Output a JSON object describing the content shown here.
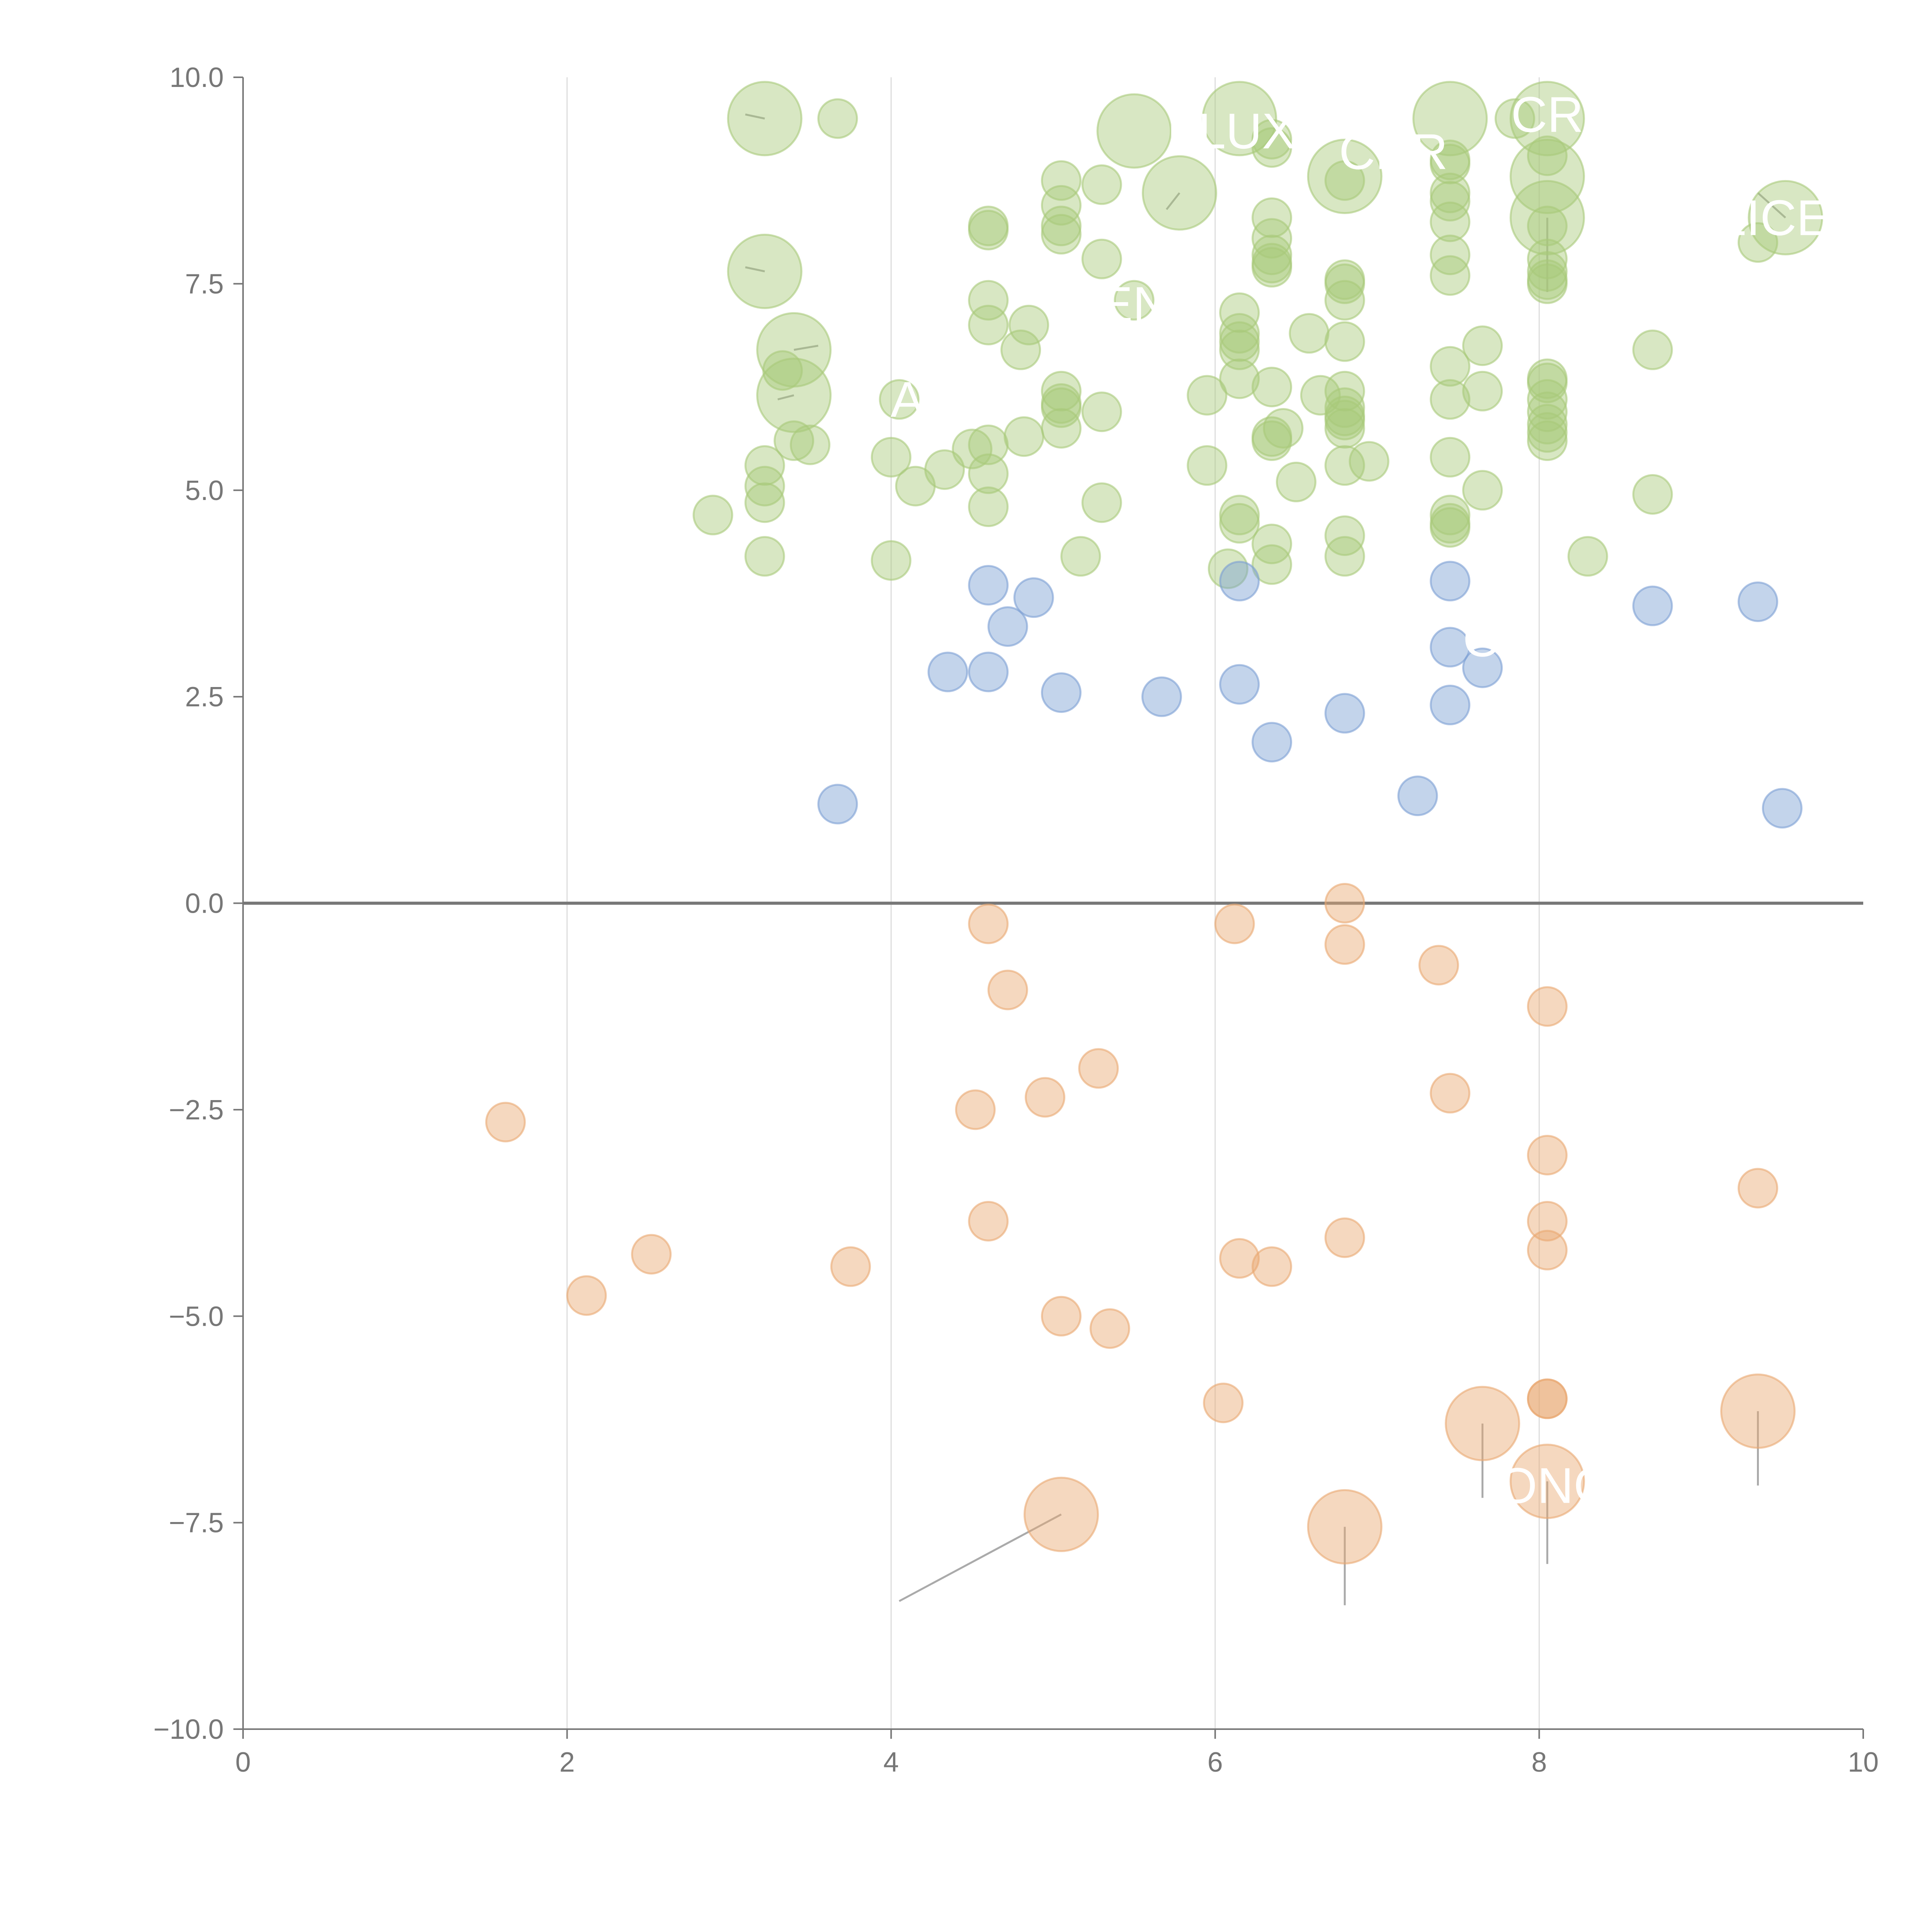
{
  "colors": {
    "positive_high": "#a9c97a",
    "positive_low": "#7b9fd3",
    "negative": "#e9a872",
    "axis": "#777777",
    "grid": "#dddddd",
    "zero_line": "#777777",
    "leader": "#aaaaaa",
    "label": "#ffffff"
  },
  "chart_data": {
    "type": "scatter",
    "subtype": "bubble",
    "title": "",
    "xlabel": "",
    "ylabel": "",
    "xlim": [
      0,
      10
    ],
    "ylim": [
      -10,
      10
    ],
    "x_ticks": [
      0,
      2,
      4,
      6,
      8,
      10
    ],
    "x_tick_labels": [
      "0",
      "2",
      "4",
      "6",
      "8",
      "10"
    ],
    "y_ticks": [
      10,
      7.5,
      5,
      2.5,
      0,
      -2.5,
      -5,
      -7.5,
      -10
    ],
    "y_tick_labels": [
      "10.0",
      "7.5",
      "5.0",
      "2.5",
      "0.0",
      "−2.5",
      "−5.0",
      "−7.5",
      "−10.0"
    ],
    "grid": "vertical at x ticks",
    "legend": "none",
    "labels": [
      {
        "text": "FLUX",
        "x": 6.1,
        "y": 9.35
      },
      {
        "text": "CR",
        "x": 8.05,
        "y": 9.55
      },
      {
        "text": "CHR",
        "x": 7.1,
        "y": 9.1
      },
      {
        "text": "LICE",
        "x": 9.45,
        "y": 8.3
      },
      {
        "text": "EN",
        "x": 5.5,
        "y": 7.25
      },
      {
        "text": "A",
        "x": 4.1,
        "y": 6.1
      },
      {
        "text": "O",
        "x": 7.65,
        "y": 3.2
      },
      {
        "text": "ONG",
        "x": 8.1,
        "y": -7.05
      }
    ],
    "series": [
      {
        "name": "high",
        "color": "#a9c97a",
        "points": [
          [
            3.22,
            9.5,
            2
          ],
          [
            3.67,
            9.5,
            1
          ],
          [
            5.5,
            9.35,
            2
          ],
          [
            6.15,
            9.5,
            2
          ],
          [
            6.35,
            9.15,
            1
          ],
          [
            6.35,
            9.25,
            1
          ],
          [
            7.45,
            9.5,
            2
          ],
          [
            7.85,
            9.5,
            1
          ],
          [
            8.05,
            9.5,
            2
          ],
          [
            7.45,
            9.0,
            1
          ],
          [
            7.45,
            8.95,
            1
          ],
          [
            8.05,
            9.05,
            1
          ],
          [
            5.05,
            8.75,
            1
          ],
          [
            5.3,
            8.7,
            1
          ],
          [
            5.78,
            8.6,
            2
          ],
          [
            6.8,
            8.8,
            2
          ],
          [
            6.8,
            8.75,
            1
          ],
          [
            8.05,
            8.8,
            2
          ],
          [
            7.45,
            8.6,
            1
          ],
          [
            7.45,
            8.5,
            1
          ],
          [
            4.6,
            8.2,
            1
          ],
          [
            4.6,
            8.15,
            1
          ],
          [
            5.05,
            8.45,
            1
          ],
          [
            5.05,
            8.2,
            1
          ],
          [
            5.05,
            8.1,
            1
          ],
          [
            6.35,
            8.3,
            1
          ],
          [
            6.35,
            8.05,
            1
          ],
          [
            7.45,
            8.25,
            1
          ],
          [
            8.05,
            8.3,
            2
          ],
          [
            8.05,
            8.2,
            1
          ],
          [
            9.35,
            8.0,
            1
          ],
          [
            9.52,
            8.3,
            2
          ],
          [
            3.22,
            7.65,
            2
          ],
          [
            5.3,
            7.8,
            1
          ],
          [
            6.35,
            7.85,
            1
          ],
          [
            6.35,
            7.7,
            1
          ],
          [
            6.35,
            7.75,
            1
          ],
          [
            6.8,
            7.55,
            1
          ],
          [
            6.8,
            7.5,
            1
          ],
          [
            7.45,
            7.85,
            1
          ],
          [
            7.45,
            7.6,
            1
          ],
          [
            8.05,
            7.8,
            1
          ],
          [
            8.05,
            7.65,
            1
          ],
          [
            8.05,
            7.55,
            1
          ],
          [
            8.05,
            7.5,
            1
          ],
          [
            4.6,
            7.3,
            1
          ],
          [
            4.6,
            7.0,
            1
          ],
          [
            4.85,
            7.0,
            1
          ],
          [
            5.5,
            7.3,
            1
          ],
          [
            6.15,
            7.15,
            1
          ],
          [
            6.15,
            6.9,
            1
          ],
          [
            6.15,
            6.8,
            1
          ],
          [
            6.15,
            6.7,
            1
          ],
          [
            6.58,
            6.9,
            1
          ],
          [
            6.8,
            7.3,
            1
          ],
          [
            6.8,
            6.8,
            1
          ],
          [
            7.65,
            6.75,
            1
          ],
          [
            8.7,
            6.7,
            1
          ],
          [
            3.4,
            6.7,
            2
          ],
          [
            3.33,
            6.45,
            1
          ],
          [
            4.8,
            6.7,
            1
          ],
          [
            3.4,
            6.15,
            2
          ],
          [
            4.05,
            6.1,
            1
          ],
          [
            5.05,
            6.2,
            1
          ],
          [
            5.05,
            6.05,
            1
          ],
          [
            5.05,
            6.0,
            1
          ],
          [
            5.3,
            5.95,
            1
          ],
          [
            5.95,
            6.15,
            1
          ],
          [
            6.15,
            6.35,
            1
          ],
          [
            6.35,
            6.25,
            1
          ],
          [
            6.65,
            6.15,
            1
          ],
          [
            6.8,
            6.2,
            1
          ],
          [
            6.8,
            6.0,
            1
          ],
          [
            6.8,
            5.9,
            1
          ],
          [
            6.8,
            5.85,
            1
          ],
          [
            7.45,
            6.5,
            1
          ],
          [
            7.45,
            6.1,
            1
          ],
          [
            7.65,
            6.2,
            1
          ],
          [
            8.05,
            6.35,
            1
          ],
          [
            8.05,
            6.3,
            1
          ],
          [
            8.05,
            6.1,
            1
          ],
          [
            8.05,
            5.95,
            1
          ],
          [
            8.05,
            5.8,
            1
          ],
          [
            8.05,
            5.7,
            1
          ],
          [
            8.05,
            5.6,
            1
          ],
          [
            3.4,
            5.6,
            1
          ],
          [
            3.5,
            5.55,
            1
          ],
          [
            3.22,
            5.3,
            1
          ],
          [
            4.6,
            5.55,
            1
          ],
          [
            4.5,
            5.5,
            1
          ],
          [
            4.82,
            5.65,
            1
          ],
          [
            5.05,
            5.75,
            1
          ],
          [
            6.35,
            5.65,
            1
          ],
          [
            6.35,
            5.6,
            1
          ],
          [
            6.42,
            5.75,
            1
          ],
          [
            6.8,
            5.75,
            1
          ],
          [
            6.8,
            5.3,
            1
          ],
          [
            6.95,
            5.35,
            1
          ],
          [
            3.22,
            5.05,
            1
          ],
          [
            3.22,
            4.85,
            1
          ],
          [
            2.9,
            4.7,
            1
          ],
          [
            4.0,
            5.4,
            1
          ],
          [
            4.15,
            5.05,
            1
          ],
          [
            4.33,
            5.25,
            1
          ],
          [
            4.6,
            5.2,
            1
          ],
          [
            4.6,
            4.8,
            1
          ],
          [
            5.3,
            4.85,
            1
          ],
          [
            5.95,
            5.3,
            1
          ],
          [
            6.15,
            4.7,
            1
          ],
          [
            6.15,
            4.6,
            1
          ],
          [
            6.5,
            5.1,
            1
          ],
          [
            7.45,
            5.4,
            1
          ],
          [
            7.45,
            4.7,
            1
          ],
          [
            7.45,
            4.6,
            1
          ],
          [
            7.45,
            4.55,
            1
          ],
          [
            7.65,
            5.0,
            1
          ],
          [
            8.7,
            4.95,
            1
          ],
          [
            3.22,
            4.2,
            1
          ],
          [
            4.0,
            4.15,
            1
          ],
          [
            5.17,
            4.2,
            1
          ],
          [
            6.08,
            4.05,
            1
          ],
          [
            6.35,
            4.35,
            1
          ],
          [
            6.35,
            4.1,
            1
          ],
          [
            6.8,
            4.45,
            1
          ],
          [
            6.8,
            4.2,
            1
          ],
          [
            8.3,
            4.2,
            1
          ]
        ]
      },
      {
        "name": "low",
        "color": "#7b9fd3",
        "points": [
          [
            4.6,
            3.85,
            1
          ],
          [
            4.88,
            3.7,
            1
          ],
          [
            4.72,
            3.35,
            1
          ],
          [
            4.35,
            2.8,
            1
          ],
          [
            4.6,
            2.8,
            1
          ],
          [
            5.05,
            2.55,
            1
          ],
          [
            5.67,
            2.5,
            1
          ],
          [
            6.15,
            3.9,
            1
          ],
          [
            6.15,
            2.65,
            1
          ],
          [
            6.35,
            1.95,
            1
          ],
          [
            6.8,
            2.3,
            1
          ],
          [
            7.45,
            3.9,
            1
          ],
          [
            7.45,
            3.1,
            1
          ],
          [
            7.45,
            2.4,
            1
          ],
          [
            7.65,
            2.85,
            1
          ],
          [
            7.25,
            1.3,
            1
          ],
          [
            8.7,
            3.6,
            1
          ],
          [
            9.35,
            3.65,
            1
          ],
          [
            3.67,
            1.2,
            1
          ],
          [
            9.5,
            1.15,
            1
          ]
        ]
      },
      {
        "name": "negative",
        "color": "#e9a872",
        "points": [
          [
            4.6,
            -0.25,
            1
          ],
          [
            4.72,
            -1.05,
            1
          ],
          [
            6.12,
            -0.25,
            1
          ],
          [
            6.8,
            0.0,
            1
          ],
          [
            6.8,
            -0.5,
            1
          ],
          [
            7.38,
            -0.75,
            1
          ],
          [
            8.05,
            -1.25,
            1
          ],
          [
            5.28,
            -2.0,
            1
          ],
          [
            4.95,
            -2.35,
            1
          ],
          [
            4.52,
            -2.5,
            1
          ],
          [
            1.62,
            -2.65,
            1
          ],
          [
            7.45,
            -2.3,
            1
          ],
          [
            8.05,
            -3.05,
            1
          ],
          [
            9.35,
            -3.45,
            1
          ],
          [
            2.52,
            -4.25,
            1
          ],
          [
            2.12,
            -4.75,
            1
          ],
          [
            3.75,
            -4.4,
            1
          ],
          [
            4.6,
            -3.85,
            1
          ],
          [
            6.15,
            -4.3,
            1
          ],
          [
            6.35,
            -4.4,
            1
          ],
          [
            6.8,
            -4.05,
            1
          ],
          [
            8.05,
            -3.85,
            1
          ],
          [
            8.05,
            -4.2,
            1
          ],
          [
            5.05,
            -5.0,
            1
          ],
          [
            5.35,
            -5.15,
            1
          ],
          [
            6.05,
            -6.05,
            1
          ],
          [
            8.05,
            -6.0,
            1
          ],
          [
            8.05,
            -6.0,
            1
          ],
          [
            7.65,
            -6.3,
            2
          ],
          [
            9.35,
            -6.15,
            2
          ],
          [
            8.05,
            -7.0,
            2
          ],
          [
            5.05,
            -7.4,
            2
          ],
          [
            6.8,
            -7.55,
            2
          ]
        ]
      }
    ]
  }
}
